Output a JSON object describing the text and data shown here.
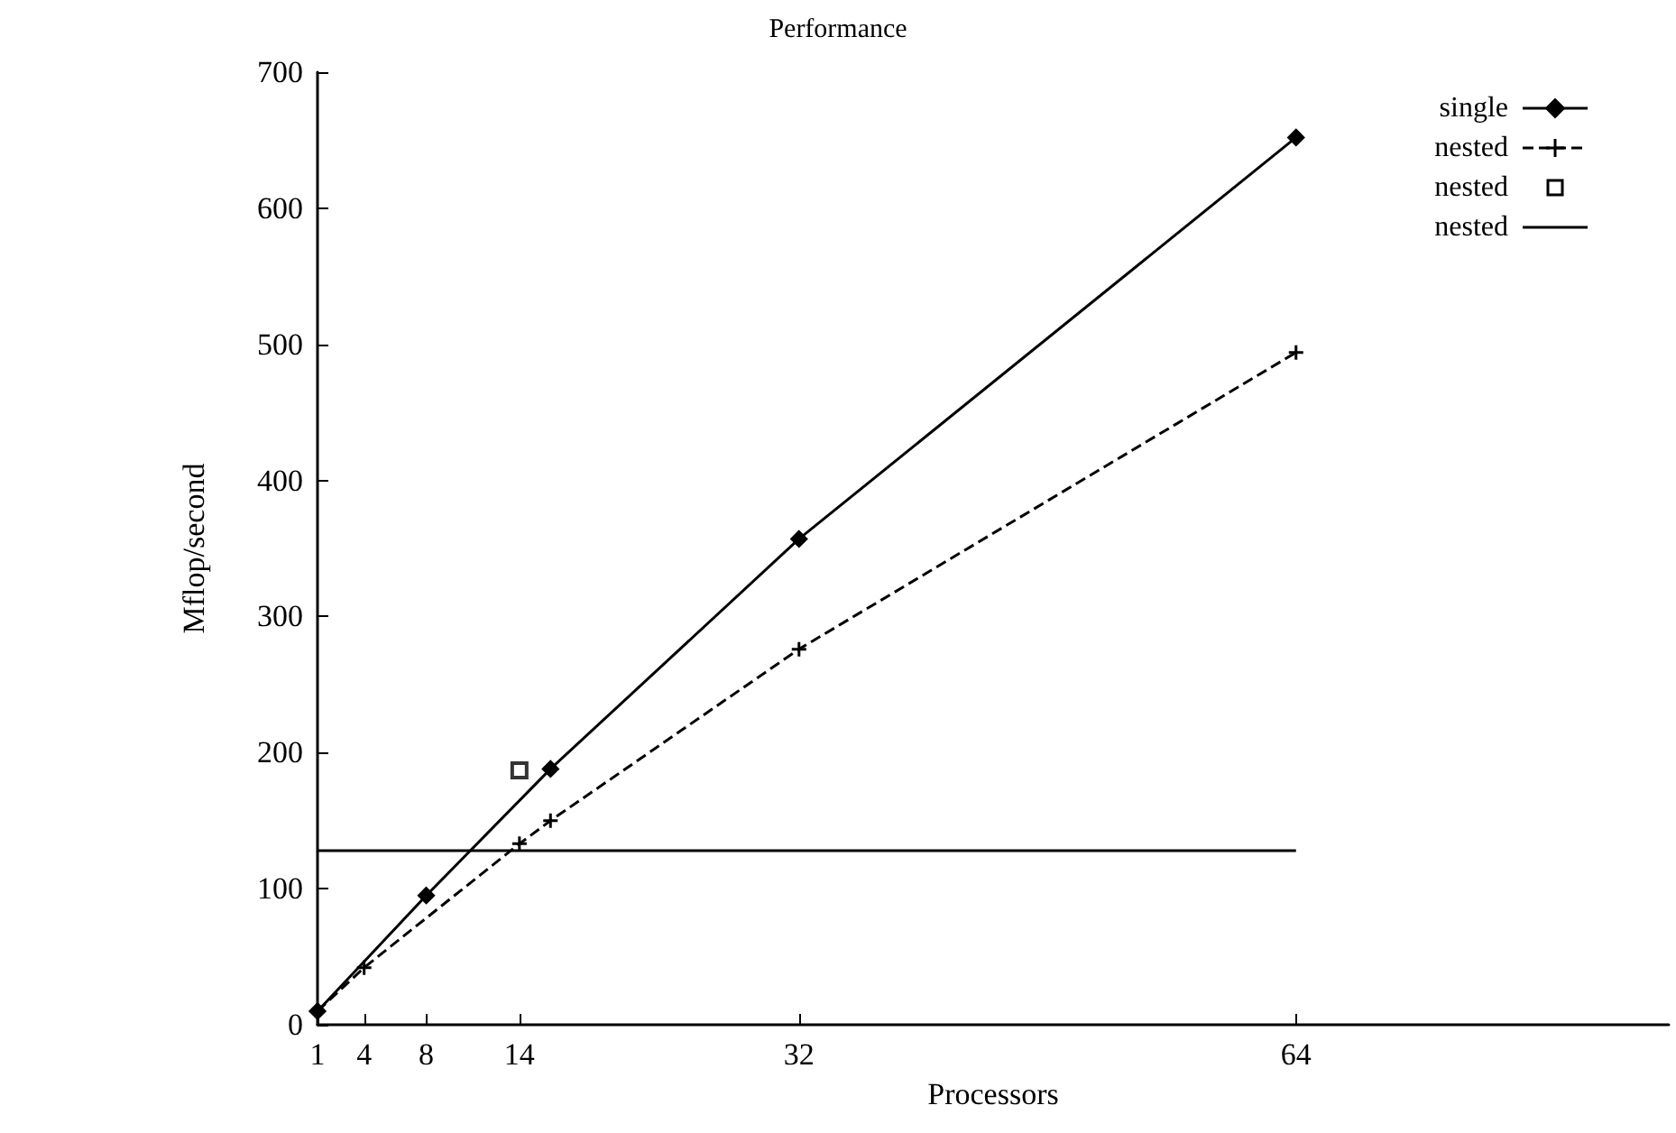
{
  "chart_data": {
    "type": "line",
    "title": "Performance",
    "xlabel": "Processors",
    "ylabel": "Mflop/second",
    "xlim": [
      1,
      88
    ],
    "xticks": [
      1,
      4,
      8,
      14,
      32,
      64
    ],
    "ylim": [
      0,
      700
    ],
    "yticks": [
      0,
      100,
      200,
      300,
      400,
      500,
      600,
      700
    ],
    "grid": false,
    "legend": "top right",
    "series": [
      {
        "name": "single",
        "color": "#000000",
        "x": [
          1,
          8,
          16,
          32,
          64
        ],
        "values": [
          10,
          95,
          188,
          357,
          652
        ],
        "marker": "diamond",
        "line_style": "solid"
      },
      {
        "name": "nested",
        "color": "#000000",
        "x": [
          1,
          4,
          14,
          16,
          32,
          64
        ],
        "values": [
          10,
          42,
          133,
          150,
          276,
          494
        ],
        "marker": "cross",
        "line_style": "dashed"
      },
      {
        "name": "nested",
        "type": "scatter",
        "color": "#000000",
        "x": [
          14
        ],
        "values": [
          187
        ],
        "marker": "square"
      },
      {
        "name": "nested",
        "color": "#000000",
        "x": [
          1,
          64
        ],
        "values": [
          128,
          128
        ],
        "marker": "none",
        "line_style": "solid"
      }
    ]
  }
}
